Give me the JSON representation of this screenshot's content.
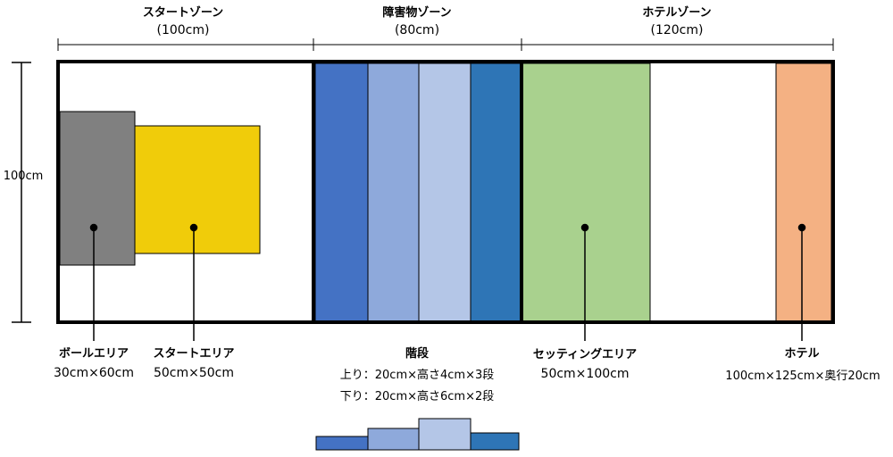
{
  "zones": [
    {
      "title": "スタートゾーン",
      "size": "(100cm)"
    },
    {
      "title": "障害物ゾーン",
      "size": "(80cm)"
    },
    {
      "title": "ホテルゾーン",
      "size": "(120cm)"
    }
  ],
  "height_label": "100cm",
  "areas": {
    "ball": {
      "title": "ボールエリア",
      "size": "30cm×60cm",
      "color": "#808080"
    },
    "start": {
      "title": "スタートエリア",
      "size": "50cm×50cm",
      "color": "#F0CC0A"
    },
    "stairs": {
      "title": "階段",
      "up": "上り：20cm×高さ4cm×3段",
      "down": "下り：20cm×高さ6cm×2段",
      "colors": [
        "#4472C4",
        "#8EA9DB",
        "#B4C6E7",
        "#2E75B6"
      ]
    },
    "setting": {
      "title": "セッティングエリア",
      "size": "50cm×100cm",
      "color": "#A9D18E"
    },
    "hotel": {
      "title": "ホテル",
      "size": "100cm×125cm×奥行20cm",
      "color": "#F4B183"
    }
  }
}
